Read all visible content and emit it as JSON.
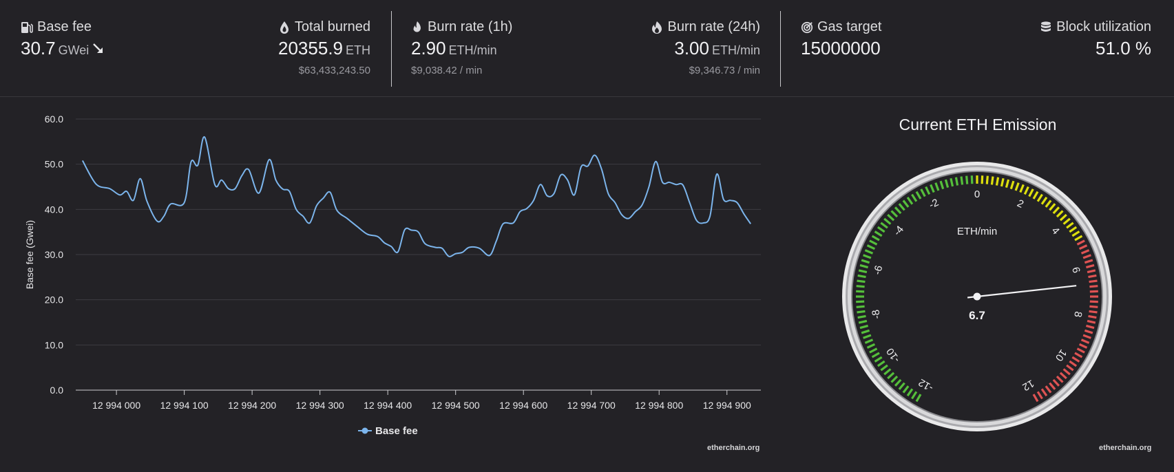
{
  "stats": {
    "base_fee": {
      "label": "Base fee",
      "value": "30.7",
      "unit": "GWei",
      "icon": "gas-pump-icon",
      "trend": "down-right-arrow-icon"
    },
    "total_burned": {
      "label": "Total burned",
      "value": "20355.9",
      "unit": "ETH",
      "usd": "$63,433,243.50",
      "icon": "drop-icon"
    },
    "burn_rate_1h": {
      "label": "Burn rate (1h)",
      "value": "2.90",
      "unit": "ETH/min",
      "usd": "$9,038.42 / min",
      "icon": "flame-icon"
    },
    "burn_rate_24h": {
      "label": "Burn rate (24h)",
      "value": "3.00",
      "unit": "ETH/min",
      "usd": "$9,346.73 / min",
      "icon": "fire-icon"
    },
    "gas_target": {
      "label": "Gas target",
      "value": "15000000",
      "icon": "target-icon"
    },
    "block_utilization": {
      "label": "Block utilization",
      "value": "51.0 %",
      "icon": "database-icon"
    }
  },
  "chart_data": {
    "type": "line",
    "title": "",
    "xlabel": "",
    "ylabel": "Base fee (Gwei)",
    "ylim": [
      0,
      60
    ],
    "xlim": [
      12993940,
      12994950
    ],
    "y_ticks": [
      "0.0",
      "10.0",
      "20.0",
      "30.0",
      "40.0",
      "50.0",
      "60.0"
    ],
    "x_ticks": [
      {
        "value": 12994000,
        "label": "12 994 000"
      },
      {
        "value": 12994100,
        "label": "12 994 100"
      },
      {
        "value": 12994200,
        "label": "12 994 200"
      },
      {
        "value": 12994300,
        "label": "12 994 300"
      },
      {
        "value": 12994400,
        "label": "12 994 400"
      },
      {
        "value": 12994500,
        "label": "12 994 500"
      },
      {
        "value": 12994600,
        "label": "12 994 600"
      },
      {
        "value": 12994700,
        "label": "12 994 700"
      },
      {
        "value": 12994800,
        "label": "12 994 800"
      },
      {
        "value": 12994900,
        "label": "12 994 900"
      }
    ],
    "grid": true,
    "legend": "bottom",
    "series": [
      {
        "name": "Base fee",
        "color": "#7cb5ec",
        "points": [
          [
            12993950,
            50.8
          ],
          [
            12993970,
            45.6
          ],
          [
            12993990,
            44.6
          ],
          [
            12994005,
            43.2
          ],
          [
            12994015,
            44.0
          ],
          [
            12994025,
            42.0
          ],
          [
            12994035,
            46.8
          ],
          [
            12994045,
            41.8
          ],
          [
            12994060,
            37.4
          ],
          [
            12994070,
            38.5
          ],
          [
            12994080,
            41.2
          ],
          [
            12994100,
            41.5
          ],
          [
            12994110,
            50.5
          ],
          [
            12994120,
            49.8
          ],
          [
            12994130,
            56.0
          ],
          [
            12994145,
            45.5
          ],
          [
            12994155,
            46.5
          ],
          [
            12994165,
            44.6
          ],
          [
            12994175,
            44.6
          ],
          [
            12994185,
            47.5
          ],
          [
            12994195,
            48.8
          ],
          [
            12994210,
            43.6
          ],
          [
            12994225,
            51.0
          ],
          [
            12994235,
            46.5
          ],
          [
            12994245,
            44.5
          ],
          [
            12994255,
            44.0
          ],
          [
            12994265,
            40.0
          ],
          [
            12994275,
            38.5
          ],
          [
            12994285,
            37.0
          ],
          [
            12994295,
            40.8
          ],
          [
            12994305,
            42.5
          ],
          [
            12994315,
            43.8
          ],
          [
            12994325,
            39.8
          ],
          [
            12994340,
            38.0
          ],
          [
            12994355,
            36.2
          ],
          [
            12994370,
            34.5
          ],
          [
            12994385,
            34.0
          ],
          [
            12994395,
            32.6
          ],
          [
            12994405,
            31.8
          ],
          [
            12994415,
            30.6
          ],
          [
            12994425,
            35.5
          ],
          [
            12994435,
            35.4
          ],
          [
            12994445,
            35.0
          ],
          [
            12994455,
            32.4
          ],
          [
            12994470,
            31.6
          ],
          [
            12994480,
            31.4
          ],
          [
            12994490,
            29.6
          ],
          [
            12994500,
            30.2
          ],
          [
            12994510,
            30.5
          ],
          [
            12994520,
            31.6
          ],
          [
            12994535,
            31.4
          ],
          [
            12994550,
            29.8
          ],
          [
            12994560,
            33.0
          ],
          [
            12994570,
            36.8
          ],
          [
            12994585,
            37.0
          ],
          [
            12994595,
            39.5
          ],
          [
            12994605,
            40.2
          ],
          [
            12994615,
            42.0
          ],
          [
            12994625,
            45.5
          ],
          [
            12994635,
            43.0
          ],
          [
            12994645,
            43.5
          ],
          [
            12994655,
            47.6
          ],
          [
            12994665,
            46.5
          ],
          [
            12994675,
            43.2
          ],
          [
            12994685,
            49.4
          ],
          [
            12994695,
            49.6
          ],
          [
            12994705,
            52.0
          ],
          [
            12994715,
            49.0
          ],
          [
            12994725,
            43.5
          ],
          [
            12994735,
            41.5
          ],
          [
            12994745,
            38.8
          ],
          [
            12994755,
            38.0
          ],
          [
            12994765,
            39.5
          ],
          [
            12994775,
            41.0
          ],
          [
            12994785,
            45.0
          ],
          [
            12994795,
            50.6
          ],
          [
            12994805,
            46.0
          ],
          [
            12994815,
            46.0
          ],
          [
            12994825,
            45.5
          ],
          [
            12994835,
            45.4
          ],
          [
            12994845,
            41.5
          ],
          [
            12994855,
            37.6
          ],
          [
            12994865,
            37.0
          ],
          [
            12994875,
            38.5
          ],
          [
            12994885,
            47.8
          ],
          [
            12994895,
            42.2
          ],
          [
            12994905,
            42.0
          ],
          [
            12994915,
            41.5
          ],
          [
            12994925,
            39.0
          ],
          [
            12994935,
            36.8
          ]
        ]
      }
    ]
  },
  "chart_credit": "etherchain.org",
  "gauge": {
    "title": "Current ETH Emission",
    "unit": "ETH/min",
    "value": 6.7,
    "display": "6.7",
    "min": -12,
    "max": 12,
    "tick_labels": [
      "-12",
      "-10",
      "-8",
      "-6",
      "-4",
      "-2",
      "0",
      "2",
      "4",
      "6",
      "8",
      "10",
      "12"
    ],
    "band_colors": {
      "negative": "#55bf3b",
      "low": "#dddf0d",
      "high": "#df5353"
    },
    "credit": "etherchain.org"
  }
}
